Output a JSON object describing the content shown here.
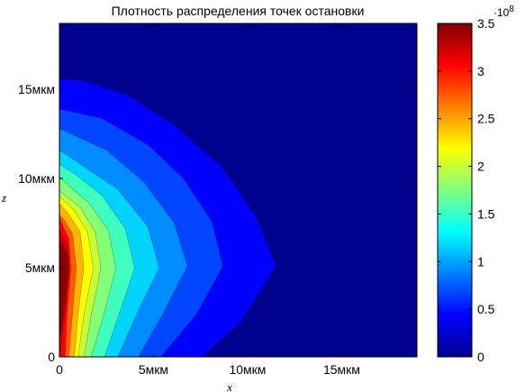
{
  "chart_data": {
    "type": "contour",
    "title": "Плотность распределения точек остановки",
    "xlabel": "x",
    "ylabel": "z",
    "xlim": [
      0,
      19
    ],
    "ylim": [
      0,
      18.7
    ],
    "x_ticks": [
      {
        "value": 0,
        "label": "0"
      },
      {
        "value": 5,
        "label": "5мкм"
      },
      {
        "value": 10,
        "label": "10мкм"
      },
      {
        "value": 15,
        "label": "15мкм"
      }
    ],
    "y_ticks": [
      {
        "value": 0,
        "label": "0"
      },
      {
        "value": 5,
        "label": "5мкм"
      },
      {
        "value": 10,
        "label": "10мкм"
      },
      {
        "value": 15,
        "label": "15мкм"
      }
    ],
    "colormap": "jet",
    "background_color": "#00008f",
    "levels": [
      {
        "level": 0.25,
        "color": "#0000ff",
        "boundary": [
          [
            7.6,
            0
          ],
          [
            9.6,
            1.9
          ],
          [
            11.5,
            5.1
          ],
          [
            10.5,
            7.8
          ],
          [
            8.7,
            10.6
          ],
          [
            6.1,
            13
          ],
          [
            3.6,
            14.7
          ],
          [
            1.2,
            15.5
          ],
          [
            0,
            15.6
          ]
        ]
      },
      {
        "level": 0.5,
        "color": "#0046ff",
        "boundary": [
          [
            5.4,
            0
          ],
          [
            7.3,
            2.4
          ],
          [
            8.7,
            5.1
          ],
          [
            8.1,
            7.6
          ],
          [
            6.6,
            10
          ],
          [
            4.7,
            11.9
          ],
          [
            2.2,
            13.4
          ],
          [
            0,
            13.9
          ]
        ]
      },
      {
        "level": 0.75,
        "color": "#008cff",
        "boundary": [
          [
            4.2,
            0
          ],
          [
            5.5,
            2.4
          ],
          [
            6.8,
            5.1
          ],
          [
            6.1,
            7.5
          ],
          [
            4.5,
            9.8
          ],
          [
            2.5,
            11.6
          ],
          [
            0,
            12.8
          ]
        ]
      },
      {
        "level": 1.0,
        "color": "#00d4ff",
        "boundary": [
          [
            3.1,
            0
          ],
          [
            4.2,
            2.6
          ],
          [
            5.3,
            5
          ],
          [
            4.7,
            7.3
          ],
          [
            3.1,
            9.4
          ],
          [
            1.4,
            10.6
          ],
          [
            0,
            11.6
          ]
        ]
      },
      {
        "level": 1.25,
        "color": "#3fffbf",
        "boundary": [
          [
            2.4,
            0
          ],
          [
            3.2,
            2.5
          ],
          [
            4,
            5
          ],
          [
            3.5,
            7.2
          ],
          [
            2.3,
            9
          ],
          [
            0.9,
            10.2
          ],
          [
            0,
            10.8
          ]
        ]
      },
      {
        "level": 1.5,
        "color": "#85ff7a",
        "boundary": [
          [
            1.7,
            0
          ],
          [
            2.4,
            2.5
          ],
          [
            3,
            5
          ],
          [
            2.6,
            7.1
          ],
          [
            1.6,
            8.6
          ],
          [
            0.5,
            9.6
          ],
          [
            0,
            10.1
          ]
        ]
      },
      {
        "level": 1.75,
        "color": "#c6ff38",
        "boundary": [
          [
            1.3,
            0
          ],
          [
            1.7,
            2.4
          ],
          [
            2.2,
            5
          ],
          [
            1.9,
            7
          ],
          [
            1.1,
            8.4
          ],
          [
            0,
            9.3
          ]
        ]
      },
      {
        "level": 2.0,
        "color": "#ffff00",
        "boundary": [
          [
            1,
            0
          ],
          [
            1.3,
            2.4
          ],
          [
            1.8,
            5
          ],
          [
            1.5,
            7
          ],
          [
            0.8,
            8.2
          ],
          [
            0,
            9
          ]
        ]
      },
      {
        "level": 2.5,
        "color": "#ffb400",
        "boundary": [
          [
            0.8,
            0
          ],
          [
            1,
            2.5
          ],
          [
            1.3,
            5
          ],
          [
            1.1,
            7
          ],
          [
            0.5,
            8
          ],
          [
            0,
            8.6
          ]
        ]
      },
      {
        "level": 2.75,
        "color": "#ff5a00",
        "boundary": [
          [
            0.5,
            0
          ],
          [
            0.7,
            2.5
          ],
          [
            0.9,
            5
          ],
          [
            0.7,
            6.9
          ],
          [
            0.3,
            7.6
          ],
          [
            0,
            8
          ]
        ]
      },
      {
        "level": 3.0,
        "color": "#ff0000",
        "boundary": [
          [
            0.3,
            0
          ],
          [
            0.4,
            2.5
          ],
          [
            0.6,
            5
          ],
          [
            0.5,
            6.6
          ],
          [
            0.2,
            7.3
          ],
          [
            0,
            7.8
          ]
        ]
      },
      {
        "level": 3.25,
        "color": "#cc0000",
        "boundary": [
          [
            0.1,
            0.8
          ],
          [
            0.35,
            3
          ],
          [
            0.5,
            5
          ],
          [
            0.4,
            6.4
          ],
          [
            0,
            7
          ]
        ]
      },
      {
        "level": 3.5,
        "color": "#8f0000",
        "boundary": [
          [
            0,
            0.9
          ],
          [
            0.25,
            2.8
          ],
          [
            0.5,
            4.8
          ],
          [
            0.4,
            5.8
          ],
          [
            0,
            6.5
          ]
        ]
      }
    ],
    "colorbar": {
      "range": [
        0,
        3.5
      ],
      "exponent_label": "·10",
      "exponent_value": "8",
      "ticks": [
        {
          "value": 0,
          "label": "0"
        },
        {
          "value": 0.5,
          "label": "0.5"
        },
        {
          "value": 1,
          "label": "1"
        },
        {
          "value": 1.5,
          "label": "1.5"
        },
        {
          "value": 2,
          "label": "2"
        },
        {
          "value": 2.5,
          "label": "2.5"
        },
        {
          "value": 3,
          "label": "3"
        },
        {
          "value": 3.5,
          "label": "3.5"
        }
      ],
      "stops": [
        {
          "at": 0,
          "color": "#00008f"
        },
        {
          "at": 0.125,
          "color": "#0000ff"
        },
        {
          "at": 0.375,
          "color": "#00ffff"
        },
        {
          "at": 0.625,
          "color": "#ffff00"
        },
        {
          "at": 0.875,
          "color": "#ff0000"
        },
        {
          "at": 1,
          "color": "#800000"
        }
      ]
    }
  }
}
